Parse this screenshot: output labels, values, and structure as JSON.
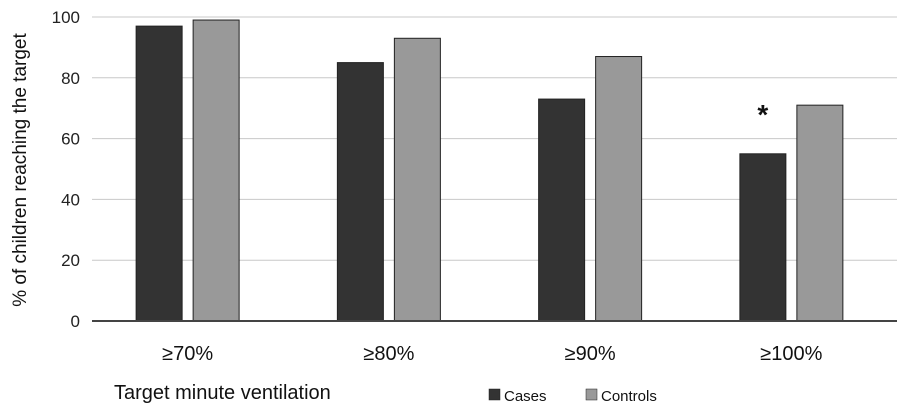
{
  "chart_data": {
    "type": "bar",
    "categories": [
      "≥70%",
      "≥80%",
      "≥90%",
      "≥100%"
    ],
    "series": [
      {
        "name": "Cases",
        "values": [
          97,
          85,
          73,
          55
        ],
        "color": "#333333"
      },
      {
        "name": "Controls",
        "values": [
          99,
          93,
          87,
          71
        ],
        "color": "#999999"
      }
    ],
    "title": "",
    "xlabel": "Target minute ventilation",
    "ylabel": "% of children reaching the target",
    "ylim": [
      0,
      100
    ],
    "yticks": [
      0,
      20,
      40,
      60,
      80,
      100
    ],
    "grid": true,
    "legend_position": "bottom-right",
    "annotations": [
      {
        "text": "*",
        "category": "≥100%"
      }
    ]
  }
}
